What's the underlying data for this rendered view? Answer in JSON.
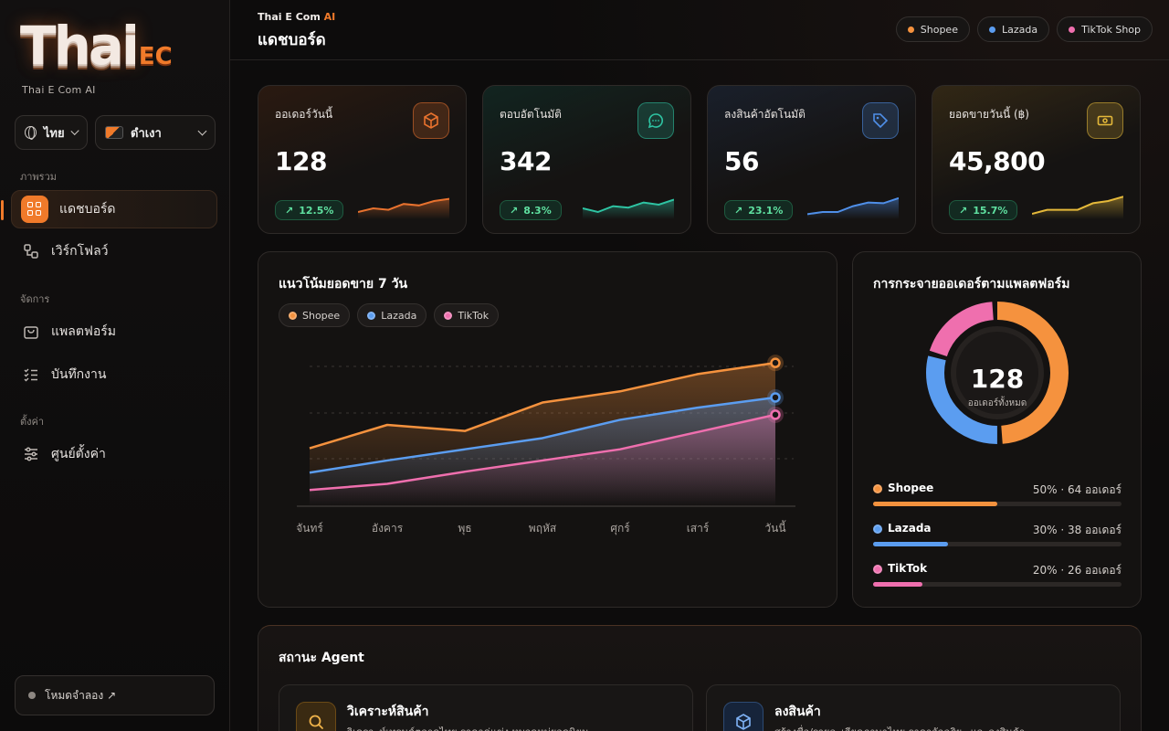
{
  "sidebar": {
    "logo_main": "Thai",
    "logo_ec": "EC",
    "logo_sub": "Thai E Com AI",
    "lang_select": "ไทย",
    "theme_select": "ดำเงา",
    "sections": [
      "ภาพรวม",
      "จัดการ",
      "ตั้งค่า"
    ],
    "items": [
      {
        "label": "แดชบอร์ด"
      },
      {
        "label": "เวิร์กโฟลว์"
      },
      {
        "label": "แพลตฟอร์ม"
      },
      {
        "label": "บันทึกงาน"
      },
      {
        "label": "ศูนย์ตั้งค่า"
      }
    ],
    "demo_button": "โหมดจำลอง ↗"
  },
  "header": {
    "brand": "Thai E Com ",
    "brand_ai": "AI",
    "title": "แดชบอร์ด",
    "chips": [
      {
        "label": "Shopee",
        "color": "#f5923e"
      },
      {
        "label": "Lazada",
        "color": "#5b9df0"
      },
      {
        "label": "TikTok Shop",
        "color": "#ef6fae"
      }
    ]
  },
  "kpis": [
    {
      "label": "ออเดอร์วันนี้",
      "value": "128",
      "change": "12.5%",
      "color": "#e8722e",
      "icon": "box-icon",
      "trend": [
        2,
        3,
        2.6,
        4.2,
        3.8,
        5,
        5.6
      ]
    },
    {
      "label": "ตอบอัตโนมัติ",
      "value": "342",
      "change": "8.3%",
      "color": "#2ec4a3",
      "icon": "chat-icon",
      "trend": [
        3,
        2,
        3.6,
        3.2,
        4.6,
        4,
        5.4
      ]
    },
    {
      "label": "ลงสินค้าอัตโนมัติ",
      "value": "56",
      "change": "23.1%",
      "color": "#4f8fe8",
      "icon": "tag-icon",
      "trend": [
        1.4,
        2,
        2,
        3.6,
        4.6,
        4.4,
        5.8
      ]
    },
    {
      "label": "ยอดขายวันนี้ (฿)",
      "value": "45,800",
      "change": "15.7%",
      "color": "#e5b93a",
      "icon": "cash-icon",
      "trend": [
        1.5,
        2.6,
        2.6,
        2.6,
        4.4,
        5,
        6.2
      ]
    }
  ],
  "trend_panel": {
    "title": "แนวโน้มยอดขาย 7 วัน",
    "legend": [
      {
        "label": "Shopee",
        "color": "#f5923e"
      },
      {
        "label": "Lazada",
        "color": "#5b9df0"
      },
      {
        "label": "TikTok",
        "color": "#ef6fae"
      }
    ]
  },
  "chart_data": {
    "type": "area",
    "title": "แนวโน้มยอดขาย 7 วัน",
    "categories": [
      "จันทร์",
      "อังคาร",
      "พุธ",
      "พฤหัส",
      "ศุกร์",
      "เสาร์",
      "วันนี้"
    ],
    "series": [
      {
        "name": "Shopee",
        "color": "#f5923e",
        "values": [
          57,
          80,
          74,
          102,
          113,
          130,
          141
        ]
      },
      {
        "name": "Lazada",
        "color": "#5b9df0",
        "values": [
          33,
          45,
          56,
          67,
          85,
          97,
          107
        ]
      },
      {
        "name": "TikTok",
        "color": "#ef6fae",
        "values": [
          16,
          22,
          34,
          45,
          56,
          73,
          90
        ]
      }
    ],
    "ylim": [
      0,
      160
    ],
    "grid": true
  },
  "distribution": {
    "title": "การกระจายออเดอร์ตามแพลตฟอร์ม",
    "total": "128",
    "total_caption": "ออเดอร์ทั้งหมด",
    "platforms": [
      {
        "name": "Shopee",
        "percent": 50,
        "stat": "50% · 64 ออเดอร์",
        "color": "#f5923e"
      },
      {
        "name": "Lazada",
        "percent": 30,
        "stat": "30% · 38 ออเดอร์",
        "color": "#5b9df0"
      },
      {
        "name": "TikTok",
        "percent": 20,
        "stat": "20% · 26 ออเดอร์",
        "color": "#ef6fae"
      }
    ]
  },
  "agents": {
    "title": "สถานะ Agent",
    "items": [
      {
        "name": "วิเคราะห์สินค้า",
        "desc": "วิเคราะห์เทรนด์ตลาดไทย ราคาคู่แข่ง หมวดหมู่ยอดนิยม",
        "color": "#e5a13a",
        "icon": "search-icon"
      },
      {
        "name": "ลงสินค้า",
        "desc": "สร้างชื่อ/รายละเอียดภาษาไทย ราคาอัจฉริยะ และลงสินค้า",
        "color": "#5b9df0",
        "icon": "box-icon"
      }
    ]
  }
}
